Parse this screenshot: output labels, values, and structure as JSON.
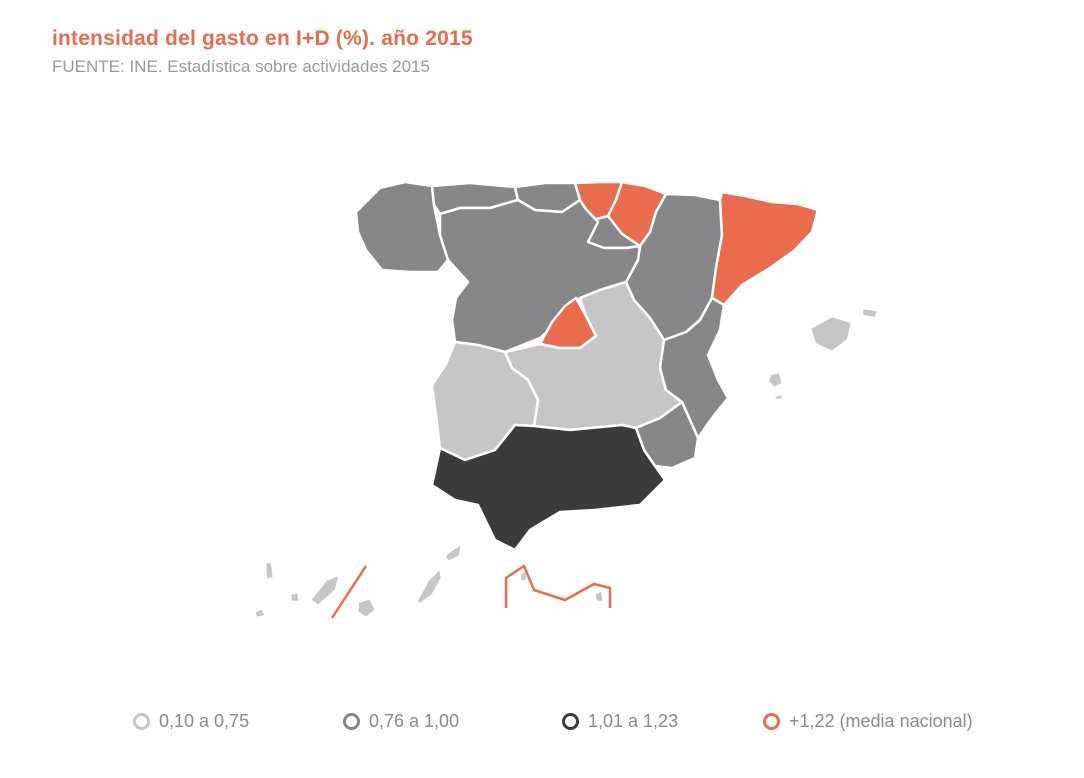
{
  "title": "intensidad del gasto en I+D (%). año 2015",
  "subtitle": "FUENTE: INE. Estadística sobre actividades 2015",
  "colors": {
    "light": "#c6c6c8",
    "mid": "#87878a",
    "dark": "#3b3b3d",
    "accent": "#ea6c4e"
  },
  "legend": [
    {
      "label": "0,10 a 0,75",
      "color": "#c6c6c8"
    },
    {
      "label": "0,76 a 1,00",
      "color": "#87878a"
    },
    {
      "label": "1,01 a 1,23",
      "color": "#3b3b3d"
    },
    {
      "label": "+1,22 (media nacional)",
      "color": "#ea6c4e"
    }
  ],
  "regions": [
    {
      "name": "Galicia",
      "class": "0,76 a 1,00"
    },
    {
      "name": "Asturias",
      "class": "0,76 a 1,00"
    },
    {
      "name": "Cantabria",
      "class": "0,76 a 1,00"
    },
    {
      "name": "País Vasco",
      "class": "+1,22 (media nacional)"
    },
    {
      "name": "Navarra",
      "class": "+1,22 (media nacional)"
    },
    {
      "name": "La Rioja",
      "class": "0,76 a 1,00"
    },
    {
      "name": "Aragón",
      "class": "0,76 a 1,00"
    },
    {
      "name": "Cataluña",
      "class": "+1,22 (media nacional)"
    },
    {
      "name": "Castilla y León",
      "class": "0,76 a 1,00"
    },
    {
      "name": "Madrid",
      "class": "+1,22 (media nacional)"
    },
    {
      "name": "Castilla-La Mancha",
      "class": "0,10 a 0,75"
    },
    {
      "name": "Extremadura",
      "class": "0,10 a 0,75"
    },
    {
      "name": "Comunidad Valenciana",
      "class": "0,76 a 1,00"
    },
    {
      "name": "Murcia",
      "class": "0,76 a 1,00"
    },
    {
      "name": "Andalucía",
      "class": "1,01 a 1,23"
    },
    {
      "name": "Islas Baleares",
      "class": "0,10 a 0,75"
    },
    {
      "name": "Canarias",
      "class": "0,10 a 0,75"
    },
    {
      "name": "Ceuta y Melilla",
      "class": "0,10 a 0,75"
    }
  ]
}
